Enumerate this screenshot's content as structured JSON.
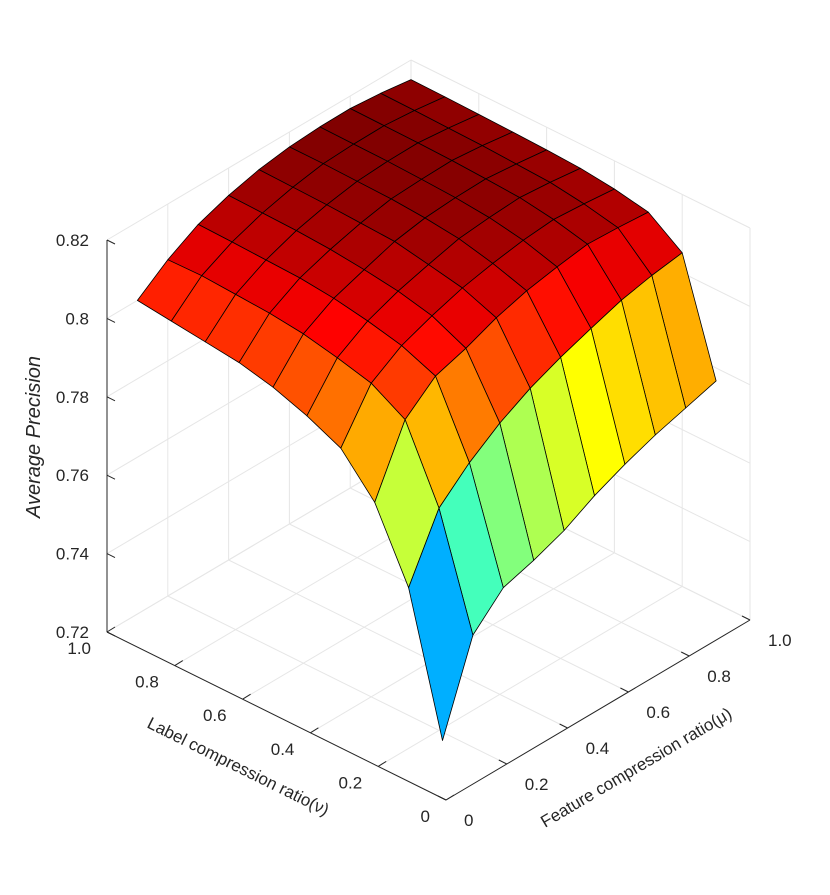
{
  "chart_data": {
    "type": "surface",
    "title": "",
    "xlabel": "Feature compression ratio(μ)",
    "ylabel": "Label compression ratio(ν)",
    "zlabel": "Average Precision",
    "x": [
      0.1,
      0.2,
      0.3,
      0.4,
      0.5,
      0.6,
      0.7,
      0.8,
      0.9,
      1.0
    ],
    "y": [
      0.1,
      0.2,
      0.3,
      0.4,
      0.5,
      0.6,
      0.7,
      0.8,
      0.9,
      1.0
    ],
    "xlim": [
      0,
      1
    ],
    "ylim": [
      0,
      1
    ],
    "zlim": [
      0.72,
      0.82
    ],
    "x_ticks": [
      0,
      0.2,
      0.4,
      0.6,
      0.8,
      1
    ],
    "x_tick_labels": [
      "0",
      "0.2",
      "0.4",
      "0.6",
      "0.8",
      "1.0"
    ],
    "y_ticks": [
      0,
      0.2,
      0.4,
      0.6,
      0.8,
      1
    ],
    "y_tick_labels": [
      "0",
      "0.2",
      "0.4",
      "0.6",
      "0.8",
      "1.0"
    ],
    "z_ticks": [
      0.72,
      0.74,
      0.76,
      0.78,
      0.8,
      0.82
    ],
    "z_tick_labels": [
      "0.72",
      "0.74",
      "0.76",
      "0.78",
      "0.8",
      "0.82"
    ],
    "z_rows_by_label_ratio": [
      [
        0.7263,
        0.7486,
        0.7561,
        0.7585,
        0.7615,
        0.7658,
        0.7692,
        0.7721,
        0.7744,
        0.7767
      ],
      [
        0.761,
        0.7767,
        0.7837,
        0.7892,
        0.7935,
        0.7968,
        0.7996,
        0.8022,
        0.8039,
        0.8051
      ],
      [
        0.7785,
        0.795,
        0.8015,
        0.804,
        0.8072,
        0.8095,
        0.811,
        0.8122,
        0.8118,
        0.8112
      ],
      [
        0.788,
        0.8,
        0.805,
        0.808,
        0.8105,
        0.8122,
        0.8135,
        0.8142,
        0.8136,
        0.8128
      ],
      [
        0.792,
        0.8022,
        0.807,
        0.81,
        0.8122,
        0.8142,
        0.815,
        0.8155,
        0.8148,
        0.8138
      ],
      [
        0.795,
        0.804,
        0.8085,
        0.8112,
        0.8138,
        0.8152,
        0.8158,
        0.816,
        0.8152,
        0.8142
      ],
      [
        0.797,
        0.805,
        0.8094,
        0.8121,
        0.8142,
        0.8158,
        0.8162,
        0.8164,
        0.8156,
        0.8145
      ],
      [
        0.798,
        0.8055,
        0.8097,
        0.8126,
        0.8146,
        0.816,
        0.8165,
        0.8166,
        0.8158,
        0.8147
      ],
      [
        0.799,
        0.806,
        0.81,
        0.8128,
        0.8148,
        0.8162,
        0.8166,
        0.8167,
        0.816,
        0.8149
      ],
      [
        0.8,
        0.8058,
        0.8102,
        0.813,
        0.815,
        0.8162,
        0.8167,
        0.8168,
        0.8161,
        0.815
      ]
    ],
    "colormap": "jet",
    "grid": true
  }
}
